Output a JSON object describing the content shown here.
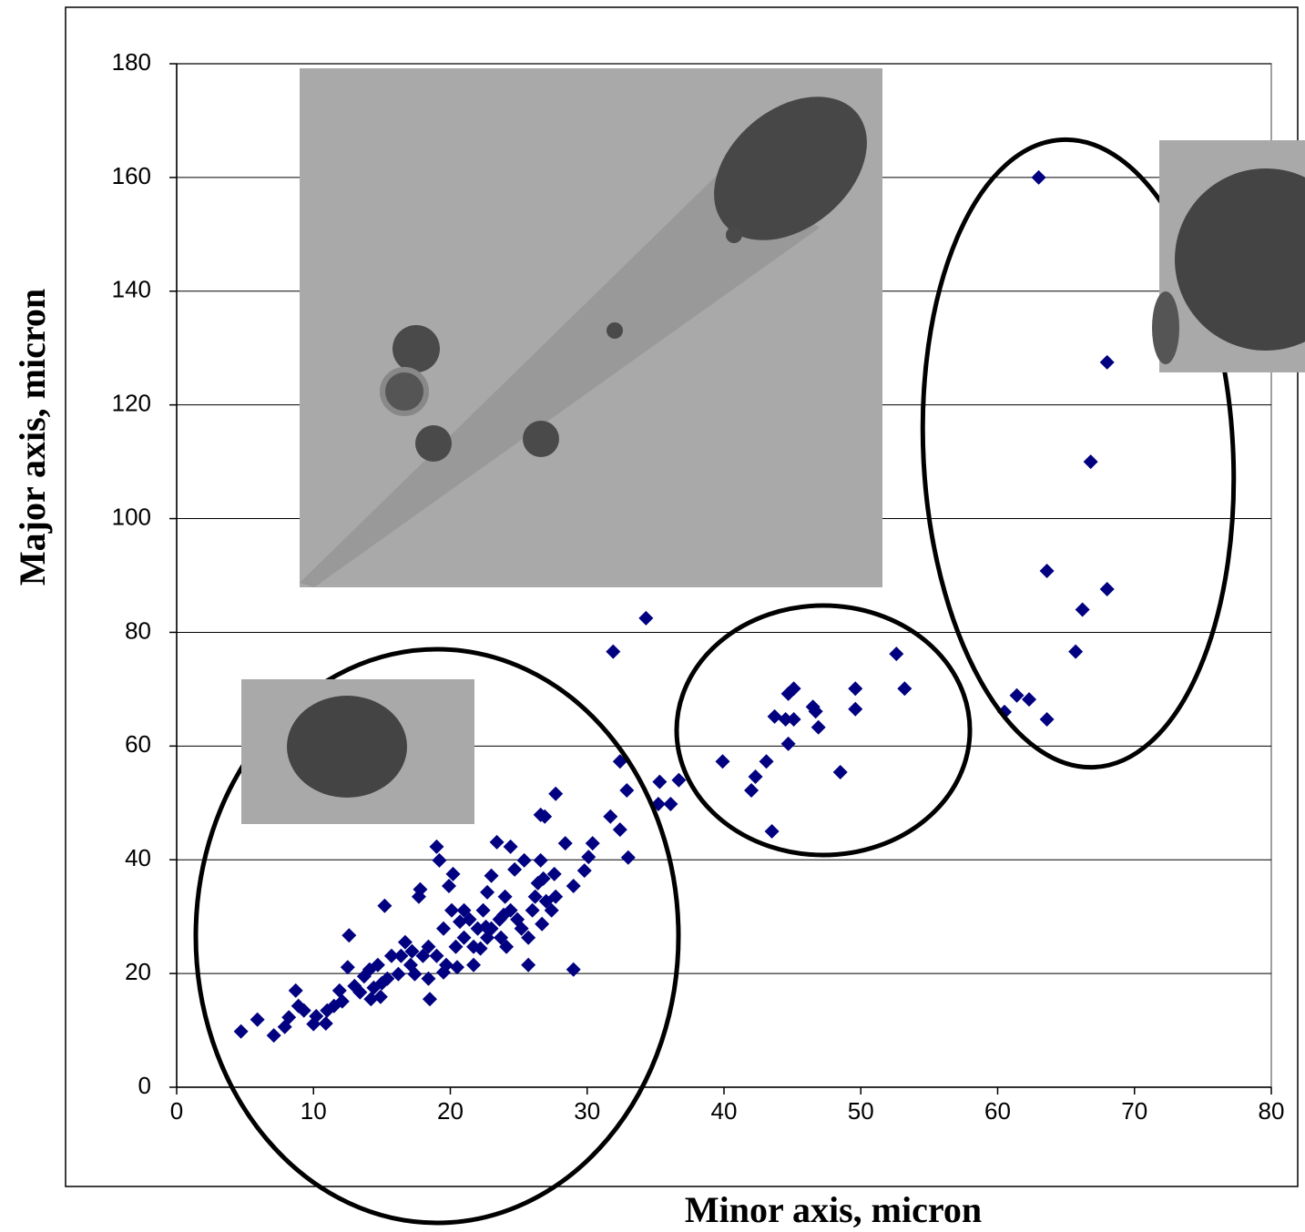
{
  "chart_data": {
    "type": "scatter",
    "xlabel": "Minor axis, micron",
    "ylabel": "Major axis, micron",
    "xlim": [
      0,
      80
    ],
    "xticks": [
      0,
      10,
      20,
      30,
      40,
      50,
      60,
      70,
      80
    ],
    "ylim": [
      0,
      180
    ],
    "yticks": [
      0,
      20,
      40,
      60,
      80,
      100,
      120,
      140,
      160,
      180
    ],
    "grid": true,
    "color": "#000080",
    "x": [
      63,
      68,
      66.8,
      63.6,
      66.2,
      68,
      65.7,
      60.5,
      61.4,
      62.3,
      63.6,
      52.6,
      53.2,
      49.6,
      49.6,
      48.5,
      45.1,
      44.7,
      44.5,
      43.7,
      45.1,
      44.7,
      46.5,
      46.7,
      46.9,
      43.1,
      42.3,
      42,
      43.5,
      39.9,
      36.7,
      35.3,
      36.1,
      35.2,
      34.3,
      31.9,
      32.4,
      32.9,
      31.7,
      32.4,
      33,
      29,
      30.4,
      30.1,
      29.8,
      29,
      28.4,
      27.7,
      26.9,
      26.6,
      4.7,
      5.9,
      7.1,
      7.9,
      8.2,
      8.7,
      9.3,
      8.9,
      10.2,
      10.9,
      11.5,
      11.9,
      12.5,
      12.6,
      13,
      13.7,
      14.1,
      14.2,
      14.7,
      15,
      15.2,
      15.7,
      16.2,
      16.7,
      17.1,
      17.7,
      17.8,
      18,
      18.4,
      18.5,
      19,
      19.2,
      19.5,
      19.7,
      20.1,
      20.2,
      20.4,
      19.9,
      20.5,
      21,
      21.4,
      21.7,
      22,
      22.4,
      22.7,
      23,
      23.4,
      23.6,
      23.7,
      24,
      24.1,
      24.4,
      24.7,
      24.9,
      25.4,
      25.7,
      25.7,
      26,
      26.4,
      26.6,
      26.7,
      27,
      27.4,
      27.6,
      27.7,
      24.4,
      23,
      21,
      21.7,
      19,
      17.4,
      16.4,
      14.4,
      13.4,
      12.1,
      11,
      10,
      15.4,
      17.2,
      18.4,
      20.7,
      22.2,
      22.6,
      23.9,
      25.2,
      26.2,
      26.8,
      22.7,
      19.5,
      14.9
    ],
    "values": [
      160,
      127.5,
      110,
      90.8,
      84,
      87.6,
      76.6,
      66,
      68.9,
      68.2,
      64.7,
      76.2,
      70.1,
      70.1,
      66.5,
      55.4,
      70.1,
      69.2,
      64.7,
      65.2,
      64.7,
      60.4,
      66.9,
      66.1,
      63.3,
      57.3,
      54.6,
      52.2,
      45,
      57.3,
      54,
      53.7,
      49.8,
      49.8,
      82.5,
      76.6,
      57.3,
      52.2,
      47.6,
      45.3,
      40.4,
      20.7,
      42.9,
      40.5,
      38.1,
      35.4,
      42.9,
      51.6,
      47.6,
      47.9,
      9.8,
      11.9,
      9.1,
      10.6,
      12.3,
      17,
      13.5,
      14.3,
      12.5,
      11.2,
      14.3,
      17,
      21.1,
      26.7,
      17.8,
      19.5,
      20.7,
      15.5,
      21.5,
      18.3,
      31.9,
      23.1,
      19.9,
      25.5,
      21.5,
      33.5,
      34.8,
      23.1,
      24.7,
      15.5,
      42.3,
      39.9,
      27.9,
      21.5,
      31.1,
      37.5,
      24.7,
      35.4,
      21.1,
      26.3,
      29.5,
      24.7,
      27.9,
      31.1,
      34.3,
      37.2,
      43.1,
      29.5,
      26.3,
      33.5,
      24.7,
      42.3,
      38.3,
      29.5,
      39.9,
      21.5,
      26.3,
      31.1,
      35.9,
      39.9,
      28.7,
      32.7,
      31.1,
      37.5,
      33.5,
      31.1,
      27.9,
      31.1,
      21.5,
      23.1,
      19.9,
      23.1,
      17.5,
      16.7,
      15.1,
      13.5,
      11.1,
      19.1,
      23.9,
      19.1,
      29.1,
      24.4,
      28.2,
      30.3,
      27.9,
      33.5,
      36.7,
      26.3,
      20.2,
      15.9
    ]
  }
}
